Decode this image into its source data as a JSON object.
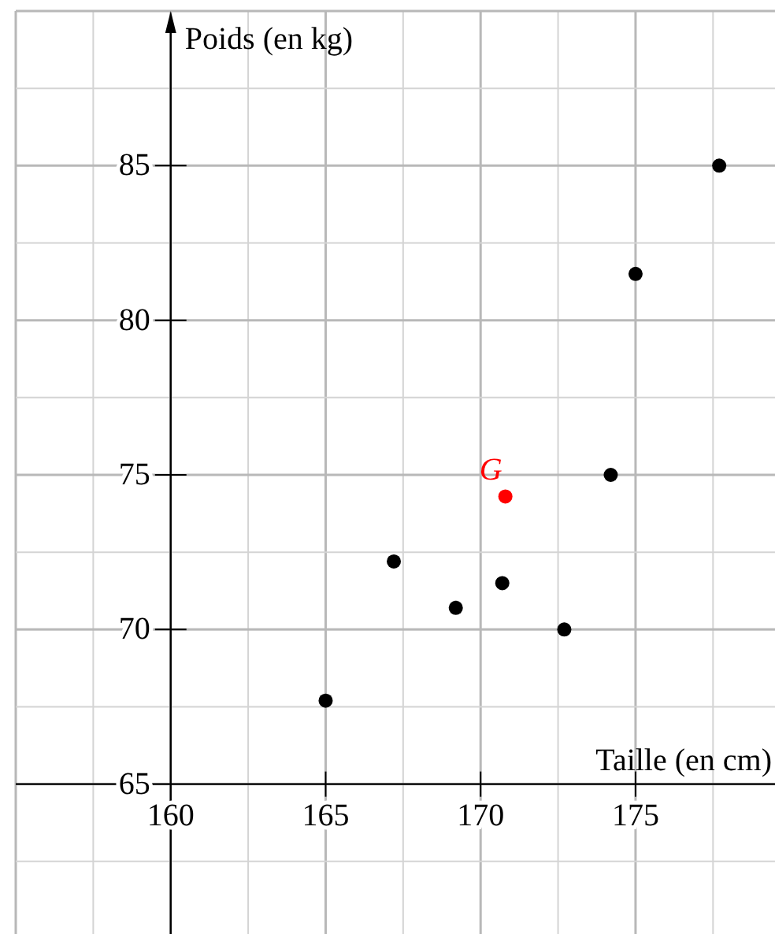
{
  "chart_data": {
    "type": "scatter",
    "xlabel": "Taille (en cm)",
    "ylabel": "Poids (en kg)",
    "xlim": [
      155,
      179.5
    ],
    "ylim": [
      60,
      90
    ],
    "xticks": [
      160,
      165,
      170,
      175
    ],
    "yticks": [
      65,
      70,
      75,
      80,
      85
    ],
    "grid": true,
    "marker": "circle",
    "legend": false,
    "series": [
      {
        "color": "#000000",
        "x": [
          165,
          167.2,
          169.2,
          170.7,
          172.7,
          174.2,
          175,
          177.7
        ],
        "values": [
          67.7,
          72.2,
          70.7,
          71.5,
          70,
          75,
          81.5,
          85
        ]
      },
      {
        "name": "G",
        "color": "#ff0000",
        "x": [
          170.8
        ],
        "values": [
          74.3
        ]
      }
    ]
  }
}
